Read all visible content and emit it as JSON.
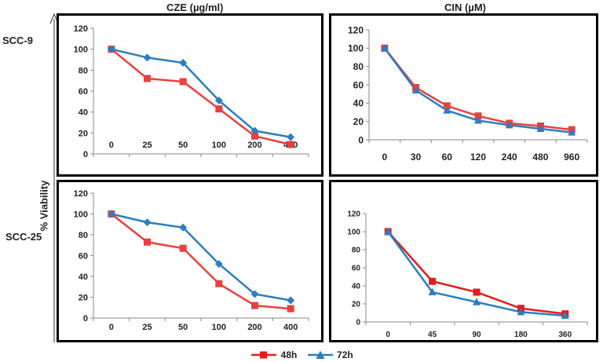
{
  "y_axis_label": "% Viability",
  "column_titles": [
    "CZE (µg/ml)",
    "CIN (µM)"
  ],
  "row_labels": [
    "SCC-9",
    "SCC-25"
  ],
  "legend": [
    {
      "name": "48h",
      "color": "#e8413f",
      "marker": "square"
    },
    {
      "name": "72h",
      "color": "#2a7ec1",
      "marker": "triangle"
    }
  ],
  "chart_data": [
    {
      "type": "line",
      "id": "scc9-cze",
      "title": "CZE (µg/ml)",
      "row": "SCC-9",
      "categories": [
        "0",
        "25",
        "50",
        "100",
        "200",
        "400"
      ],
      "ylim": [
        0,
        120
      ],
      "yticks": [
        0,
        20,
        40,
        60,
        80,
        100,
        120
      ],
      "grid": false,
      "series": [
        {
          "name": "48h",
          "color": "#e8413f",
          "marker": "square",
          "values": [
            100,
            72,
            69,
            43,
            17,
            9
          ]
        },
        {
          "name": "72h",
          "color": "#2a7ec1",
          "marker": "diamond",
          "values": [
            100,
            92,
            87,
            51,
            22,
            16
          ]
        }
      ]
    },
    {
      "type": "line",
      "id": "scc9-cin",
      "title": "CIN (µM)",
      "row": "SCC-9",
      "categories": [
        "0",
        "30",
        "60",
        "120",
        "240",
        "480",
        "960"
      ],
      "ylim": [
        0,
        120
      ],
      "yticks": [
        0,
        20,
        40,
        60,
        80,
        100,
        120
      ],
      "grid": false,
      "series": [
        {
          "name": "48h",
          "color": "#e8413f",
          "marker": "square",
          "values": [
            100,
            57,
            37,
            26,
            18,
            15,
            11
          ]
        },
        {
          "name": "72h",
          "color": "#2a7ec1",
          "marker": "triangle",
          "values": [
            100,
            54,
            32,
            21,
            16,
            12,
            8
          ]
        }
      ]
    },
    {
      "type": "line",
      "id": "scc25-cze",
      "title": "CZE (µg/ml)",
      "row": "SCC-25",
      "categories": [
        "0",
        "25",
        "50",
        "100",
        "200",
        "400"
      ],
      "ylim": [
        0,
        120
      ],
      "yticks": [
        0,
        20,
        40,
        60,
        80,
        100,
        120
      ],
      "grid": false,
      "series": [
        {
          "name": "48h",
          "color": "#e8413f",
          "marker": "square",
          "values": [
            100,
            73,
            67,
            33,
            12,
            9
          ]
        },
        {
          "name": "72h",
          "color": "#2a7ec1",
          "marker": "diamond",
          "values": [
            100,
            92,
            87,
            52,
            23,
            17
          ]
        }
      ]
    },
    {
      "type": "line",
      "id": "scc25-cin",
      "title": "CIN (µM)",
      "row": "SCC-25",
      "categories": [
        "0",
        "45",
        "90",
        "180",
        "360"
      ],
      "ylim": [
        0,
        120
      ],
      "yticks": [
        0,
        20,
        40,
        60,
        80,
        100,
        120
      ],
      "grid": false,
      "series": [
        {
          "name": "48h",
          "color": "#e41c1c",
          "marker": "square",
          "values": [
            100,
            45,
            33,
            15,
            9
          ]
        },
        {
          "name": "72h",
          "color": "#2a7ec1",
          "marker": "triangle",
          "values": [
            100,
            33,
            22,
            11,
            7
          ]
        }
      ]
    }
  ]
}
